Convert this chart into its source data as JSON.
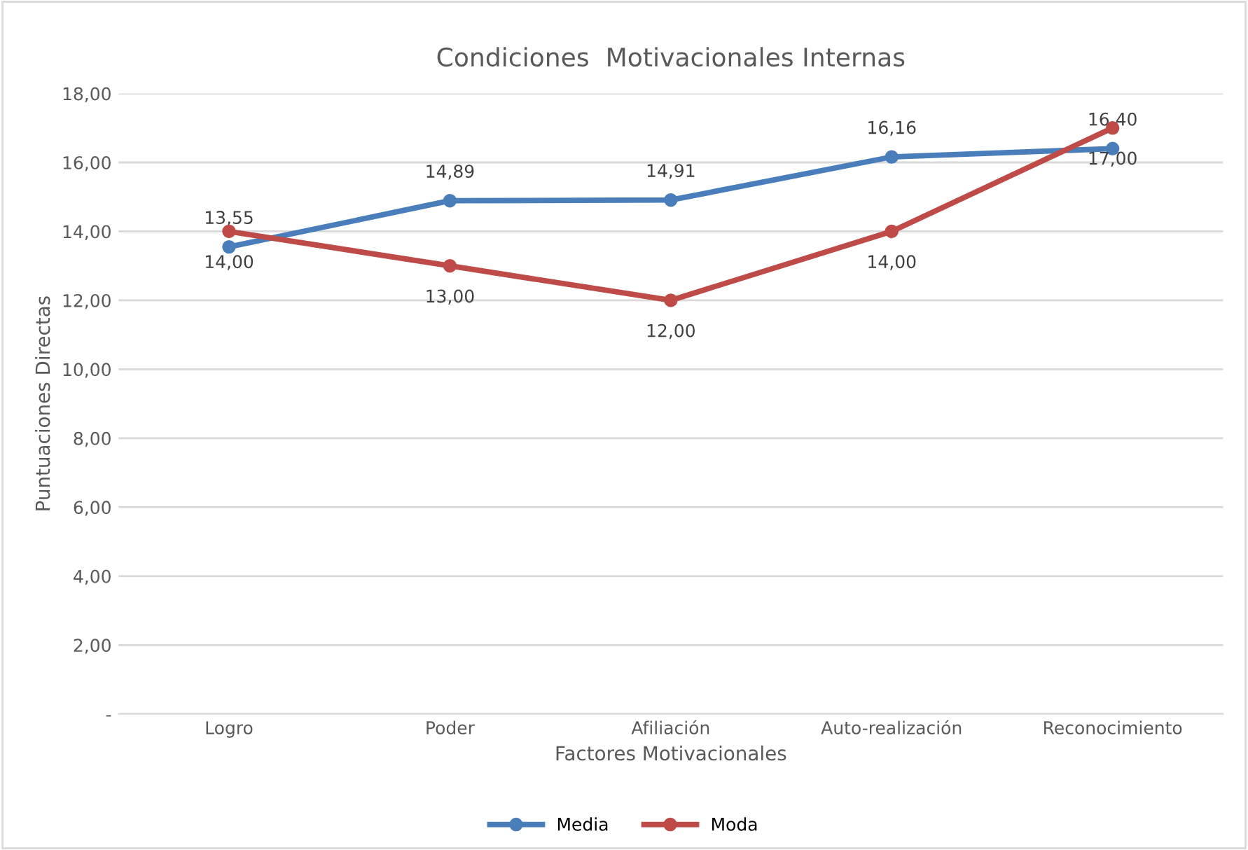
{
  "chart_data": {
    "type": "line",
    "title": "Condiciones  Motivacionales Internas",
    "xlabel": "Factores Motivacionales",
    "ylabel": "Puntuaciones Directas",
    "categories": [
      "Logro",
      "Poder",
      "Afiliación",
      "Auto-realización",
      "Reconocimiento"
    ],
    "series": [
      {
        "name": "Media",
        "color": "#4a7ebb",
        "values": [
          13.55,
          14.89,
          14.91,
          16.16,
          16.4
        ],
        "value_labels": [
          "13,55",
          "14,89",
          "14,91",
          "16,16",
          "16,40"
        ]
      },
      {
        "name": "Moda",
        "color": "#be4b48",
        "values": [
          14,
          13,
          12,
          14,
          17
        ],
        "value_labels": [
          "14,00",
          "13,00",
          "12,00",
          "14,00",
          "17,00"
        ]
      }
    ],
    "ylim": [
      0,
      18
    ],
    "yticks": [
      {
        "value": 0,
        "label": "-"
      },
      {
        "value": 2,
        "label": "2,00"
      },
      {
        "value": 4,
        "label": "4,00"
      },
      {
        "value": 6,
        "label": "6,00"
      },
      {
        "value": 8,
        "label": "8,00"
      },
      {
        "value": 10,
        "label": "10,00"
      },
      {
        "value": 12,
        "label": "12,00"
      },
      {
        "value": 14,
        "label": "14,00"
      },
      {
        "value": 16,
        "label": "16,00"
      },
      {
        "value": 18,
        "label": "18,00"
      }
    ],
    "grid": "y",
    "legend": "bottom",
    "marker": "circle",
    "line_style": "solid"
  }
}
